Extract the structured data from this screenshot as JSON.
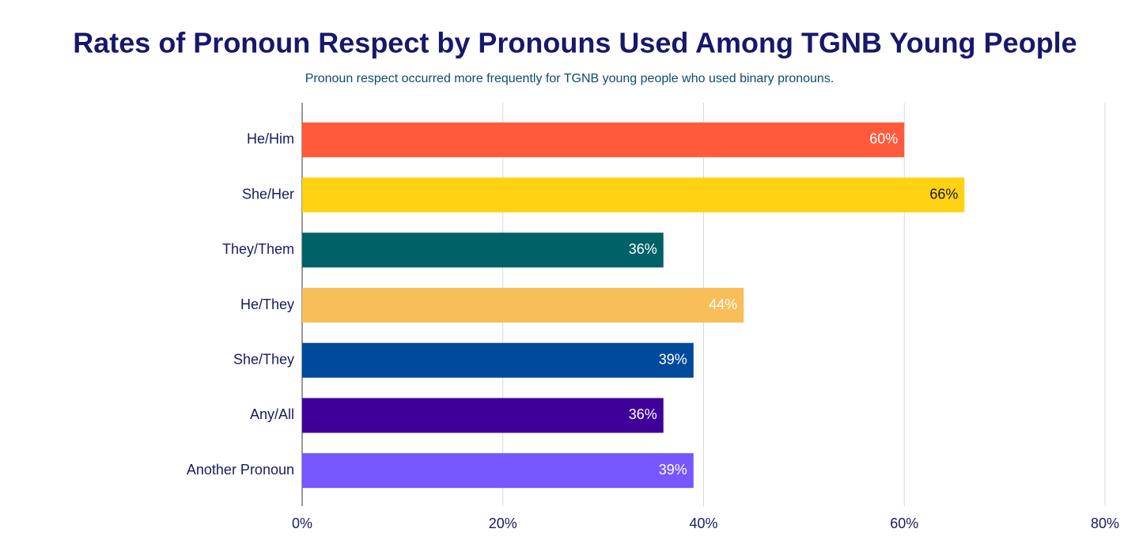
{
  "chart_data": {
    "type": "bar",
    "orientation": "horizontal",
    "title": "Rates of Pronoun Respect by Pronouns Used Among TGNB Young People",
    "subtitle": "Pronoun respect occurred more frequently for TGNB young people who used binary pronouns.",
    "categories": [
      "He/Him",
      "She/Her",
      "They/Them",
      "He/They",
      "She/They",
      "Any/All",
      "Another Pronoun"
    ],
    "values": [
      60,
      66,
      36,
      44,
      39,
      36,
      39
    ],
    "value_labels": [
      "60%",
      "66%",
      "36%",
      "44%",
      "39%",
      "36%",
      "39%"
    ],
    "colors": [
      "#ff5a3c",
      "#ffd214",
      "#006166",
      "#f8be5a",
      "#004a9c",
      "#3e0099",
      "#7757ff"
    ],
    "xlim": [
      0,
      80
    ],
    "xticks": [
      {
        "value": 0,
        "label": "0%"
      },
      {
        "value": 20,
        "label": "20%"
      },
      {
        "value": 40,
        "label": "40%"
      },
      {
        "value": 60,
        "label": "60%"
      },
      {
        "value": 80,
        "label": "80%"
      }
    ],
    "grid": true
  }
}
